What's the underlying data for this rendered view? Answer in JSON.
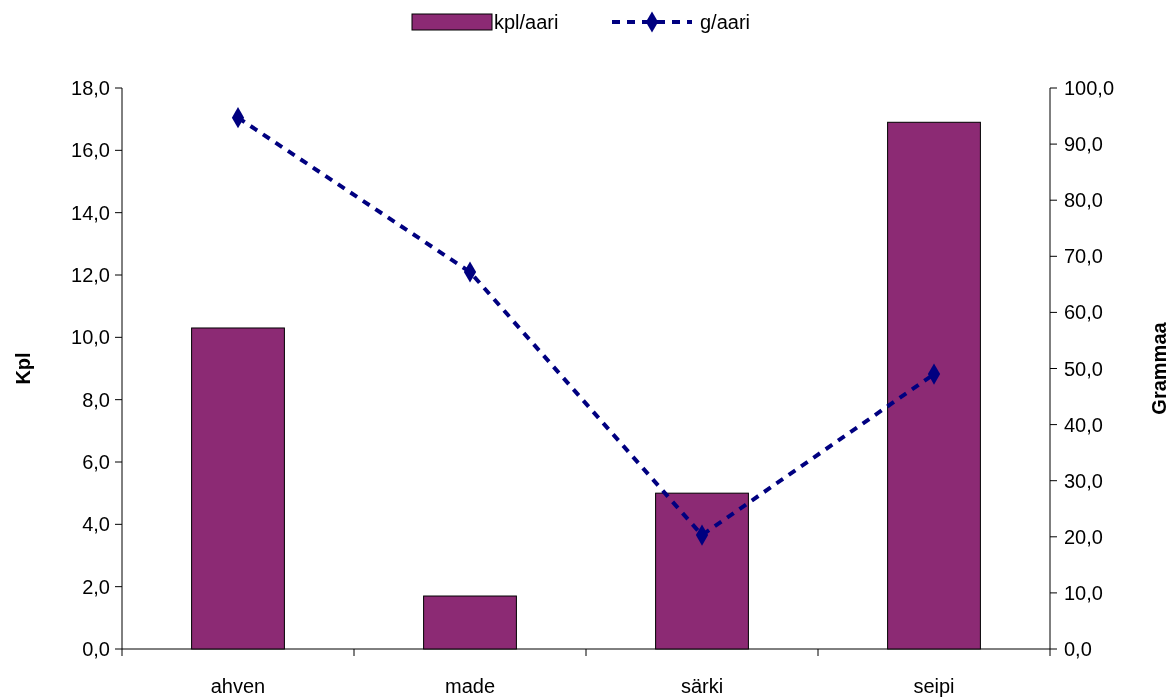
{
  "chart_data": {
    "type": "bar",
    "categories": [
      "ahven",
      "made",
      "särki",
      "seipi"
    ],
    "series": [
      {
        "name": "kpl/aari",
        "color": "#8c2a74",
        "values": [
          10.3,
          1.7,
          5.0,
          16.9
        ]
      },
      {
        "name": "g/aari",
        "type": "line",
        "axis": "y2",
        "color": "#000080",
        "values": [
          94.7,
          67.2,
          20.3,
          49.0
        ],
        "marker": "diamond",
        "line_style": "dashed"
      }
    ],
    "ylabel": "Kpl",
    "y2label": "Grammaa",
    "ylim": [
      0,
      18
    ],
    "yticks": [
      {
        "value": 0,
        "label": "0,0"
      },
      {
        "value": 2,
        "label": "2,0"
      },
      {
        "value": 4,
        "label": "4,0"
      },
      {
        "value": 6,
        "label": "6,0"
      },
      {
        "value": 8,
        "label": "8,0"
      },
      {
        "value": 10,
        "label": "10,0"
      },
      {
        "value": 12,
        "label": "12,0"
      },
      {
        "value": 14,
        "label": "14,0"
      },
      {
        "value": 16,
        "label": "16,0"
      },
      {
        "value": 18,
        "label": "18,0"
      }
    ],
    "y2lim": [
      0,
      100
    ],
    "y2ticks": [
      {
        "value": 0,
        "label": "0,0"
      },
      {
        "value": 10,
        "label": "10,0"
      },
      {
        "value": 20,
        "label": "20,0"
      },
      {
        "value": 30,
        "label": "30,0"
      },
      {
        "value": 40,
        "label": "40,0"
      },
      {
        "value": 50,
        "label": "50,0"
      },
      {
        "value": 60,
        "label": "60,0"
      },
      {
        "value": 70,
        "label": "70,0"
      },
      {
        "value": 80,
        "label": "80,0"
      },
      {
        "value": 90,
        "label": "90,0"
      },
      {
        "value": 100,
        "label": "100,0"
      }
    ],
    "legend": "top",
    "grid": false
  }
}
